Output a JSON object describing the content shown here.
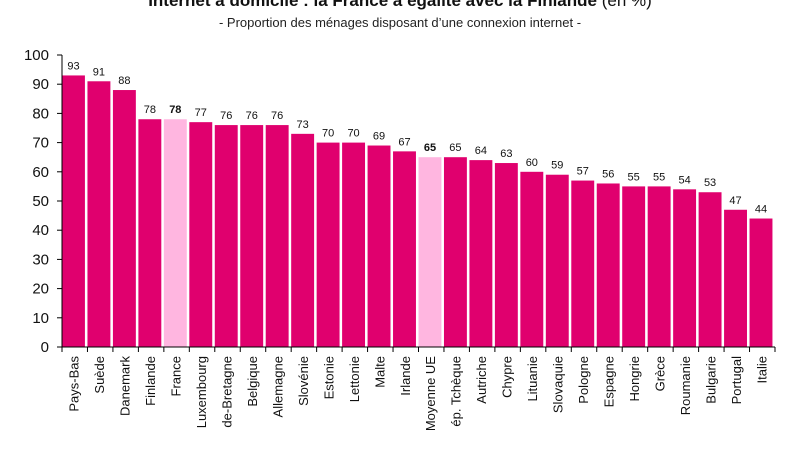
{
  "chart_data": {
    "type": "bar",
    "title": "Internet à domicile : la France à égalité avec la Finlande",
    "title_unit": "(en %)",
    "subtitle": "- Proportion des ménages disposant d’une connexion internet -",
    "xlabel": "",
    "ylabel": "",
    "ylim": [
      0,
      100
    ],
    "ytick_step": 10,
    "categories": [
      "Pays-Bas",
      "Suède",
      "Danemark",
      "Finlande",
      "France",
      "Luxembourg",
      "Royaume-Uni de-Bretagne",
      "Belgique",
      "Allemagne",
      "Slovénie",
      "Estonie",
      "Lettonie",
      "Malte",
      "Irlande",
      "Moyenne UE",
      "Rép. Tchèque",
      "Autriche",
      "Chypre",
      "Lituanie",
      "Slovaquie",
      "Pologne",
      "Espagne",
      "Hongrie",
      "Grèce",
      "Roumanie",
      "Bulgarie",
      "Portugal",
      "Italie"
    ],
    "category_display": [
      "Pays-Bas",
      "Suède",
      "Danemark",
      "Finlande",
      "France",
      "Luxembourg",
      "de-Bretagne",
      "Belgique",
      "Allemagne",
      "Slovénie",
      "Estonie",
      "Lettonie",
      "Malte",
      "Irlande",
      "Moyenne UE",
      "ép. Tchèque",
      "Autriche",
      "Chypre",
      "Lituanie",
      "Slovaquie",
      "Pologne",
      "Espagne",
      "Hongrie",
      "Grèce",
      "Roumanie",
      "Bulgarie",
      "Portugal",
      "Italie"
    ],
    "values": [
      93,
      91,
      88,
      78,
      78,
      77,
      76,
      76,
      76,
      73,
      70,
      70,
      69,
      67,
      65,
      65,
      64,
      63,
      60,
      59,
      57,
      56,
      55,
      55,
      54,
      53,
      47,
      44
    ],
    "highlighted": [
      "France",
      "Moyenne UE"
    ],
    "colors": {
      "bar": "#e0006e",
      "highlight": "#ffb6e0",
      "axis": "#000000"
    }
  }
}
